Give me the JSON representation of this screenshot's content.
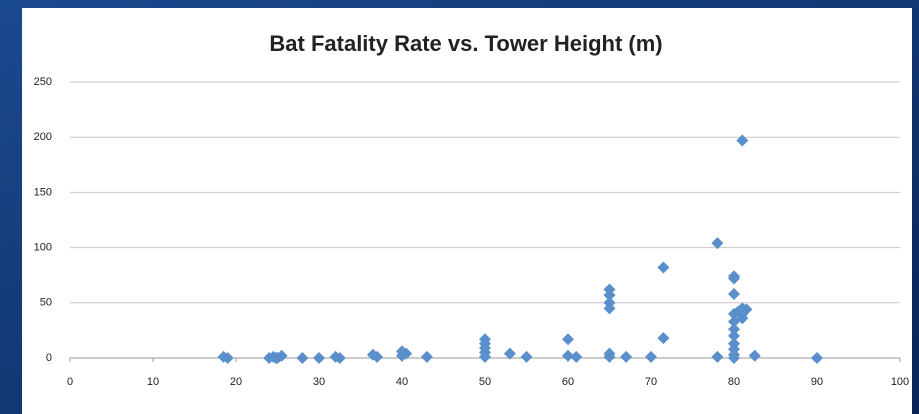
{
  "chart_data": {
    "type": "scatter",
    "title": "Bat Fatality Rate vs. Tower Height (m)",
    "color": "#5b8fcc",
    "grid": true,
    "xlim": [
      0,
      100
    ],
    "xticks": [
      0,
      10,
      20,
      30,
      40,
      50,
      60,
      70,
      80,
      90,
      100
    ],
    "ylim": [
      0,
      250
    ],
    "yticks": [
      0,
      50,
      100,
      150,
      200,
      250
    ],
    "x": [
      18.5,
      19,
      24,
      24.5,
      25,
      25.5,
      24.8,
      28,
      30,
      32,
      32.5,
      36.5,
      37,
      40,
      40,
      40.5,
      43,
      50,
      50,
      50,
      50,
      50,
      53,
      55,
      60,
      60,
      61,
      65,
      65,
      65,
      65,
      65,
      65,
      67,
      70,
      71.5,
      71.5,
      78,
      78,
      80,
      80,
      80,
      80,
      80,
      80,
      80,
      80,
      80,
      80,
      80,
      81,
      81,
      81,
      81,
      80.5,
      81.5,
      82.5,
      90
    ],
    "values": [
      1,
      0,
      0,
      1,
      0,
      2,
      0,
      0,
      0,
      1,
      0,
      3,
      1,
      6,
      2,
      4,
      1,
      17,
      13,
      9,
      5,
      1,
      4,
      1,
      17,
      2,
      1,
      62,
      57,
      50,
      45,
      4,
      1,
      1,
      1,
      82,
      18,
      104,
      1,
      74,
      72,
      58,
      40,
      33,
      26,
      20,
      13,
      8,
      3,
      0,
      197,
      45,
      40,
      36,
      42,
      44,
      2,
      0
    ]
  }
}
